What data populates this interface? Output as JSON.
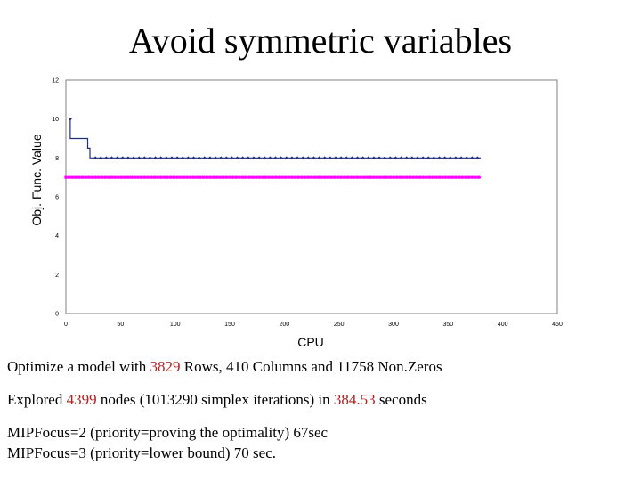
{
  "slide": {
    "title": "Avoid symmetric variables",
    "line1": {
      "a": "Optimize a model with ",
      "rows": "3829",
      "b": " Rows, 410 Columns and 11758 Non.Zeros"
    },
    "line2": {
      "a": "Explored ",
      "nodes": "4399",
      "b": " nodes (1013290 simplex iterations) in ",
      "secs": "384.53",
      "c": " seconds"
    },
    "line3": "MIPFocus=2 (priority=proving the optimality) 67sec",
    "line4": "MIPFocus=3 (priority=lower bound)  70 sec."
  },
  "colors": {
    "upper": "#1f2f7a",
    "lower": "#ff00ff",
    "plot_bg": "#ffffff",
    "highlight": "#b22222"
  },
  "chart_data": {
    "type": "line",
    "xlabel": "CPU",
    "ylabel": "Obj. Func. Value",
    "xlim": [
      0,
      450
    ],
    "ylim": [
      0,
      12
    ],
    "xticks": [
      0,
      50,
      100,
      150,
      200,
      250,
      300,
      350,
      400,
      450
    ],
    "yticks": [
      0,
      2,
      4,
      6,
      8,
      10,
      12
    ],
    "grid": false,
    "series": [
      {
        "key": "upper",
        "x": [
          4,
          4,
          8,
          12,
          16,
          20,
          20,
          22,
          22,
          380
        ],
        "y": [
          10,
          9,
          9,
          9,
          9,
          9,
          8.5,
          8.5,
          8,
          8
        ],
        "marker_step": 5
      },
      {
        "key": "lower",
        "x": [
          0,
          380
        ],
        "y": [
          7,
          7
        ],
        "marker_step": 3
      }
    ]
  }
}
